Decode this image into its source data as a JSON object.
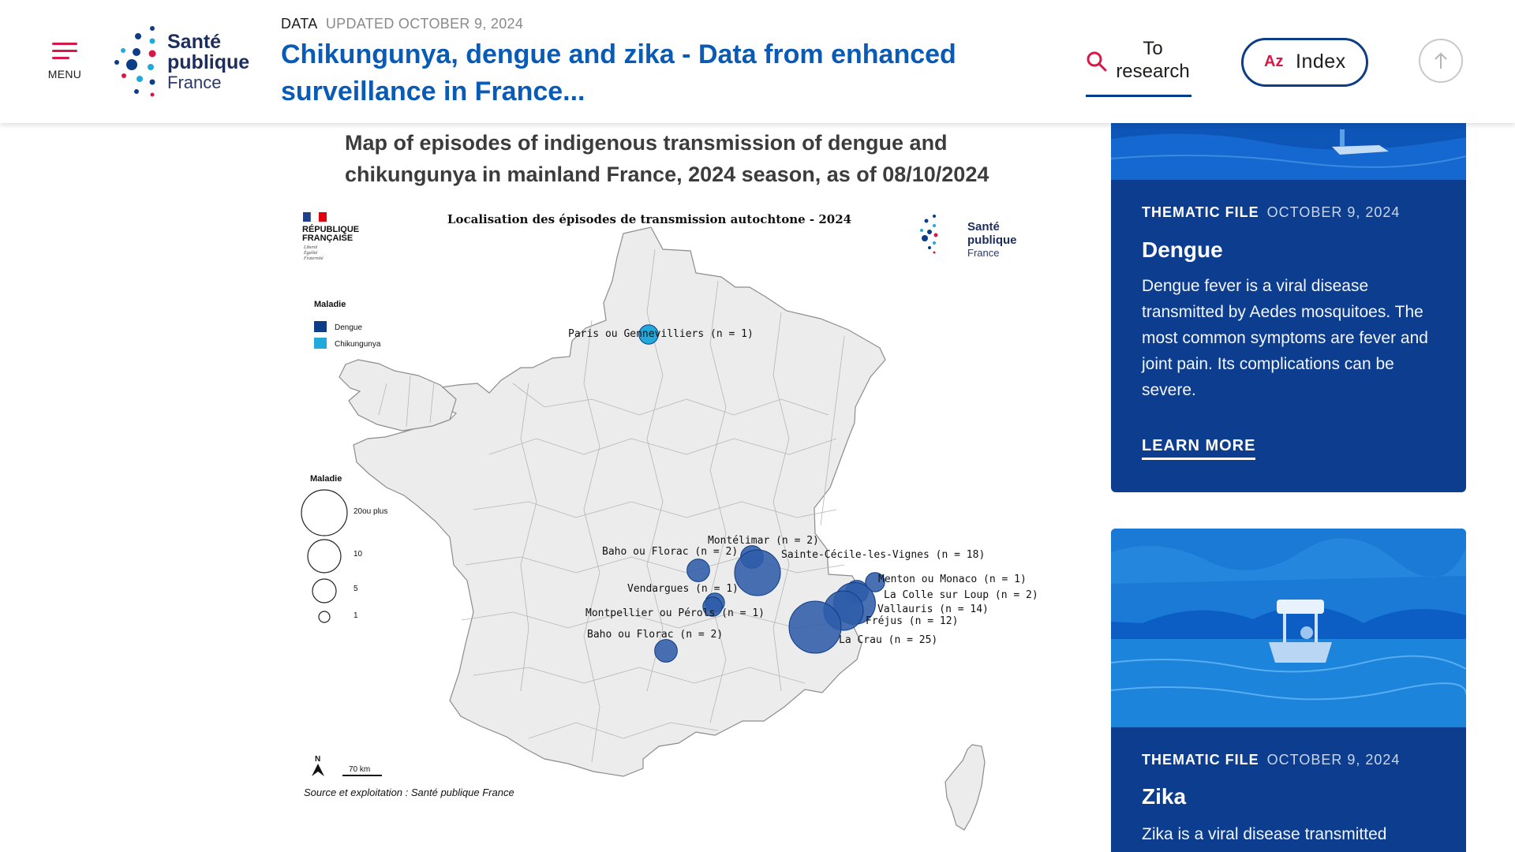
{
  "header": {
    "menu_label": "MENU",
    "logo": {
      "line1": "Santé",
      "line2": "publique",
      "line3": "France"
    },
    "breadcrumb_type": "DATA",
    "breadcrumb_updated": "UPDATED OCTOBER 9, 2024",
    "title": "Chikungunya, dengue and zika - Data from enhanced surveillance in France...",
    "search_label": "To research",
    "index_az": "Az",
    "index_label": "Index"
  },
  "figure": {
    "title": "Map of episodes of indigenous transmission of dengue and chikungunya in mainland France, 2024 season, as of 08/10/2024",
    "map_title": "Localisation des épisodes de transmission autochtone - 2024",
    "republic": [
      "RÉPUBLIQUE",
      "FRANÇAISE",
      "Liberté",
      "Égalité",
      "Fraternité"
    ],
    "legend_disease_title": "Maladie",
    "legend_diseases": [
      "Dengue",
      "Chikungunya"
    ],
    "legend_size_title": "Maladie",
    "legend_sizes": [
      "20ou plus",
      "10",
      "5",
      "1"
    ],
    "north": "N",
    "scale": "70 km",
    "source": "Source et exploitation : Santé publique France",
    "episodes": [
      {
        "label": "Paris ou Gennevilliers (n = 1)",
        "n": 1,
        "disease": "Chikungunya"
      },
      {
        "label": "Montélimar (n = 2)",
        "n": 2,
        "disease": "Dengue"
      },
      {
        "label": "Baho ou Florac (n = 2)",
        "n": 2,
        "disease": "Dengue"
      },
      {
        "label": "Sainte-Cécile-les-Vignes (n = 18)",
        "n": 18,
        "disease": "Dengue"
      },
      {
        "label": "Menton ou Monaco (n = 1)",
        "n": 1,
        "disease": "Dengue"
      },
      {
        "label": "La Colle sur Loup (n = 2)",
        "n": 2,
        "disease": "Dengue"
      },
      {
        "label": "Vendargues (n = 1)",
        "n": 1,
        "disease": "Dengue"
      },
      {
        "label": "Vallauris (n = 14)",
        "n": 14,
        "disease": "Dengue"
      },
      {
        "label": "Montpellier ou Pérols (n = 1)",
        "n": 1,
        "disease": "Dengue"
      },
      {
        "label": "Fréjus (n = 12)",
        "n": 12,
        "disease": "Dengue"
      },
      {
        "label": "Baho ou Florac (n = 2)",
        "n": 2,
        "disease": "Dengue"
      },
      {
        "label": "La Crau (n = 25)",
        "n": 25,
        "disease": "Dengue"
      }
    ]
  },
  "cards": [
    {
      "type": "THEMATIC FILE",
      "date": "OCTOBER 9, 2024",
      "title": "Dengue",
      "description": "Dengue fever is a viral disease transmitted by Aedes mosquitoes. The most common symptoms are fever and joint pain. Its complications can be severe.",
      "cta": "LEARN MORE"
    },
    {
      "type": "THEMATIC FILE",
      "date": "OCTOBER 9, 2024",
      "title": "Zika",
      "description": "Zika is a viral disease transmitted"
    }
  ],
  "colors": {
    "brand_blue": "#0a5bb5",
    "card_blue": "#0d3d8e",
    "accent_red": "#d7194a",
    "dengue": "#2f5ca8",
    "chikungunya": "#22a9dc"
  }
}
